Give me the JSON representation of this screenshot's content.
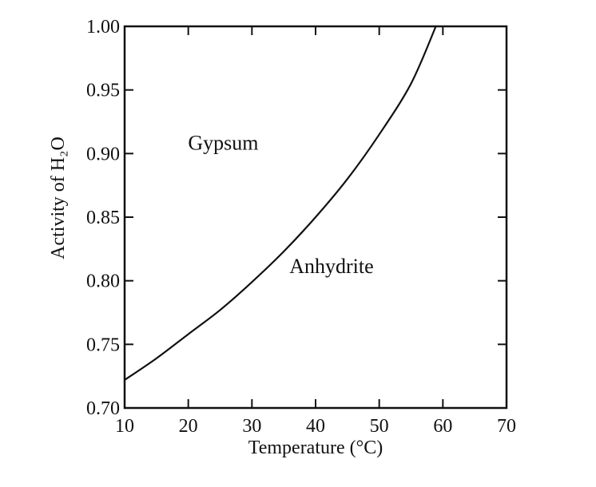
{
  "chart_data": {
    "type": "line",
    "xlabel": "Temperature (°C)",
    "ylabel": "Activity of H₂O",
    "xlim": [
      10,
      70
    ],
    "ylim": [
      0.7,
      1.0
    ],
    "x_ticks": [
      10,
      20,
      30,
      40,
      50,
      60,
      70
    ],
    "y_ticks": [
      0.7,
      0.75,
      0.8,
      0.85,
      0.9,
      0.95,
      1.0
    ],
    "x_tick_labels": [
      "10",
      "20",
      "30",
      "40",
      "50",
      "60",
      "70"
    ],
    "y_tick_labels": [
      "0.70",
      "0.75",
      "0.80",
      "0.85",
      "0.90",
      "0.95",
      "1.00"
    ],
    "grid": false,
    "series": [
      {
        "x": [
          10,
          15,
          20,
          25,
          30,
          35,
          40,
          45,
          50,
          55,
          58.9
        ],
        "y": [
          0.722,
          0.739,
          0.758,
          0.777,
          0.799,
          0.823,
          0.85,
          0.88,
          0.915,
          0.955,
          1.0
        ],
        "color": "#111111"
      }
    ],
    "annotations": [
      {
        "text": "Gypsum",
        "x": 25.5,
        "y": 0.903
      },
      {
        "text": "Anhydrite",
        "x": 42.5,
        "y": 0.806
      }
    ]
  }
}
